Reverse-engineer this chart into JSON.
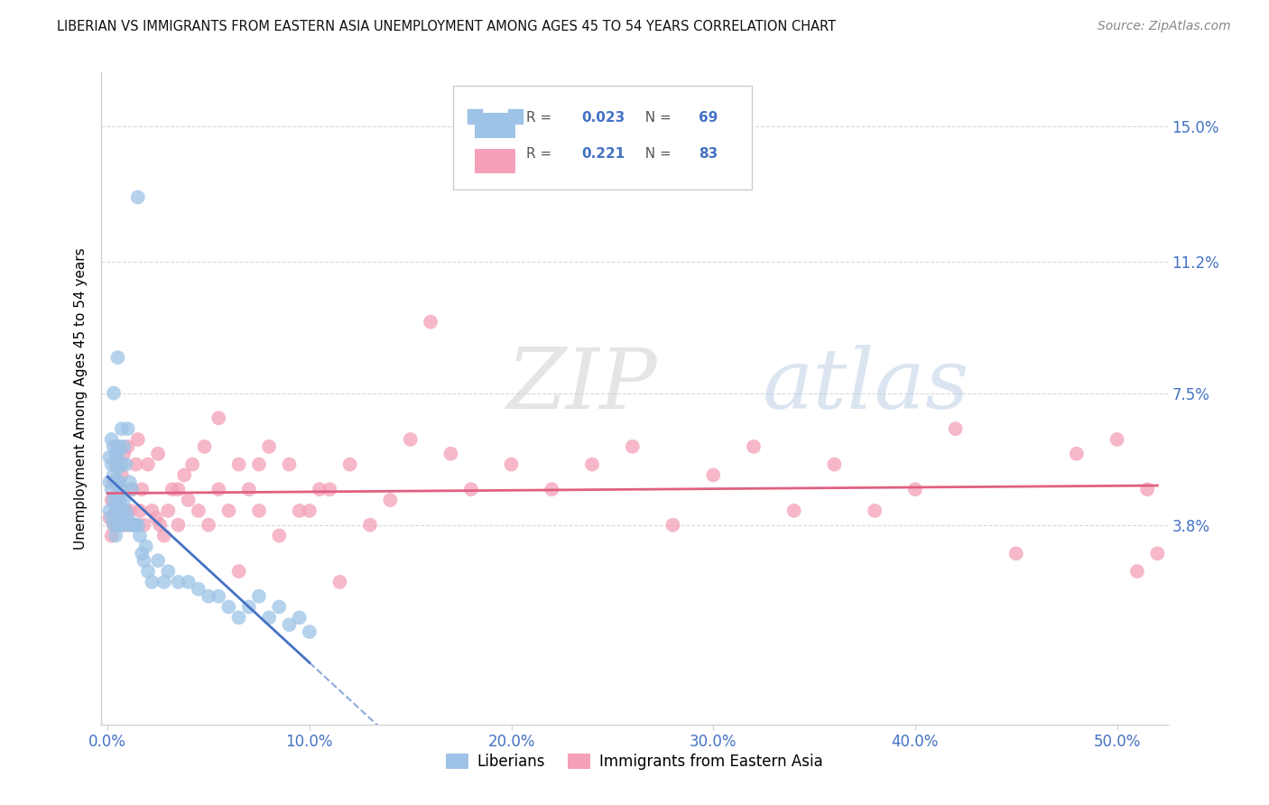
{
  "title": "LIBERIAN VS IMMIGRANTS FROM EASTERN ASIA UNEMPLOYMENT AMONG AGES 45 TO 54 YEARS CORRELATION CHART",
  "source": "Source: ZipAtlas.com",
  "xlabel_ticks": [
    "0.0%",
    "10.0%",
    "20.0%",
    "30.0%",
    "40.0%",
    "50.0%"
  ],
  "xlabel_vals": [
    0.0,
    0.1,
    0.2,
    0.3,
    0.4,
    0.5
  ],
  "ylabel_ticks": [
    "3.8%",
    "7.5%",
    "11.2%",
    "15.0%"
  ],
  "ylabel_vals": [
    0.038,
    0.075,
    0.112,
    0.15
  ],
  "ylabel_label": "Unemployment Among Ages 45 to 54 years",
  "legend_labels": [
    "Liberians",
    "Immigrants from Eastern Asia"
  ],
  "blue_color": "#4472c4",
  "pink_color": "#e06080",
  "blue_dot_color": "#9dc3e6",
  "pink_dot_color": "#f4a0b8",
  "grid_color": "#d0d0d0",
  "background_color": "#ffffff",
  "xlim": [
    -0.003,
    0.525
  ],
  "ylim": [
    -0.018,
    0.165
  ],
  "liberian_x": [
    0.001,
    0.001,
    0.001,
    0.002,
    0.002,
    0.002,
    0.002,
    0.003,
    0.003,
    0.003,
    0.003,
    0.003,
    0.004,
    0.004,
    0.004,
    0.004,
    0.005,
    0.005,
    0.005,
    0.005,
    0.005,
    0.005,
    0.005,
    0.006,
    0.006,
    0.006,
    0.006,
    0.007,
    0.007,
    0.007,
    0.007,
    0.007,
    0.008,
    0.008,
    0.008,
    0.009,
    0.009,
    0.01,
    0.01,
    0.011,
    0.011,
    0.012,
    0.012,
    0.013,
    0.014,
    0.015,
    0.016,
    0.017,
    0.018,
    0.019,
    0.02,
    0.022,
    0.025,
    0.028,
    0.03,
    0.035,
    0.04,
    0.045,
    0.05,
    0.055,
    0.06,
    0.065,
    0.07,
    0.075,
    0.08,
    0.085,
    0.09,
    0.095,
    0.1
  ],
  "liberian_y": [
    0.042,
    0.05,
    0.057,
    0.04,
    0.048,
    0.055,
    0.062,
    0.038,
    0.045,
    0.052,
    0.06,
    0.075,
    0.035,
    0.043,
    0.05,
    0.058,
    0.038,
    0.042,
    0.046,
    0.05,
    0.054,
    0.058,
    0.085,
    0.04,
    0.045,
    0.05,
    0.06,
    0.038,
    0.042,
    0.048,
    0.055,
    0.065,
    0.038,
    0.045,
    0.06,
    0.042,
    0.055,
    0.04,
    0.065,
    0.038,
    0.05,
    0.038,
    0.048,
    0.038,
    0.038,
    0.038,
    0.035,
    0.03,
    0.028,
    0.032,
    0.025,
    0.022,
    0.028,
    0.022,
    0.025,
    0.022,
    0.022,
    0.02,
    0.018,
    0.018,
    0.015,
    0.012,
    0.015,
    0.018,
    0.012,
    0.015,
    0.01,
    0.012,
    0.008
  ],
  "liberian_outlier_x": [
    0.015
  ],
  "liberian_outlier_y": [
    0.13
  ],
  "eastern_asia_x": [
    0.001,
    0.002,
    0.002,
    0.003,
    0.003,
    0.004,
    0.004,
    0.005,
    0.005,
    0.006,
    0.006,
    0.007,
    0.007,
    0.008,
    0.008,
    0.009,
    0.01,
    0.01,
    0.011,
    0.012,
    0.013,
    0.014,
    0.015,
    0.016,
    0.017,
    0.018,
    0.02,
    0.022,
    0.024,
    0.026,
    0.028,
    0.03,
    0.032,
    0.035,
    0.038,
    0.04,
    0.042,
    0.045,
    0.048,
    0.05,
    0.055,
    0.06,
    0.065,
    0.07,
    0.075,
    0.08,
    0.09,
    0.1,
    0.11,
    0.12,
    0.13,
    0.14,
    0.15,
    0.16,
    0.17,
    0.18,
    0.2,
    0.22,
    0.24,
    0.26,
    0.28,
    0.3,
    0.32,
    0.34,
    0.36,
    0.38,
    0.4,
    0.42,
    0.45,
    0.48,
    0.5,
    0.51,
    0.515,
    0.52,
    0.055,
    0.065,
    0.075,
    0.085,
    0.095,
    0.105,
    0.115,
    0.025,
    0.035
  ],
  "eastern_asia_y": [
    0.04,
    0.045,
    0.035,
    0.05,
    0.038,
    0.055,
    0.038,
    0.042,
    0.06,
    0.038,
    0.048,
    0.052,
    0.038,
    0.058,
    0.038,
    0.042,
    0.06,
    0.038,
    0.042,
    0.048,
    0.038,
    0.055,
    0.062,
    0.042,
    0.048,
    0.038,
    0.055,
    0.042,
    0.04,
    0.038,
    0.035,
    0.042,
    0.048,
    0.038,
    0.052,
    0.045,
    0.055,
    0.042,
    0.06,
    0.038,
    0.048,
    0.042,
    0.055,
    0.048,
    0.042,
    0.06,
    0.055,
    0.042,
    0.048,
    0.055,
    0.038,
    0.045,
    0.062,
    0.095,
    0.058,
    0.048,
    0.055,
    0.048,
    0.055,
    0.06,
    0.038,
    0.052,
    0.06,
    0.042,
    0.055,
    0.042,
    0.048,
    0.065,
    0.03,
    0.058,
    0.062,
    0.025,
    0.048,
    0.03,
    0.068,
    0.025,
    0.055,
    0.035,
    0.042,
    0.048,
    0.022,
    0.058,
    0.048
  ]
}
